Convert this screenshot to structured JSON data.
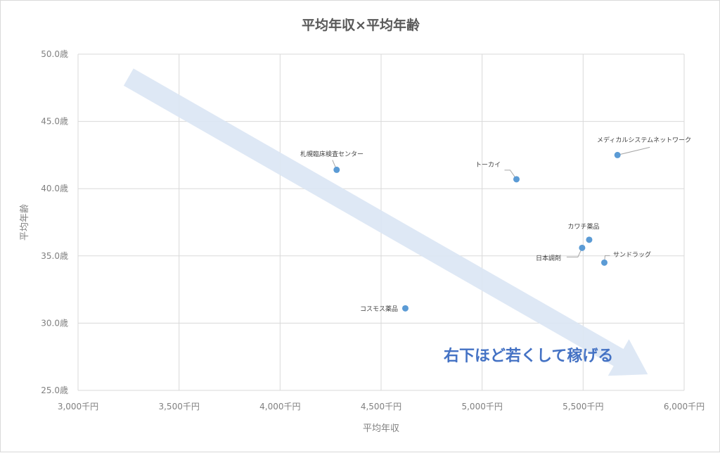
{
  "chart_data": {
    "type": "scatter",
    "title": "平均年収×平均年齢",
    "xlabel": "平均年収",
    "ylabel": "平均年齢",
    "xlim": [
      3000,
      6000
    ],
    "ylim": [
      25.0,
      50.0
    ],
    "x_ticks": [
      3000,
      3500,
      4000,
      4500,
      5000,
      5500,
      6000
    ],
    "y_ticks": [
      25.0,
      30.0,
      35.0,
      40.0,
      45.0,
      50.0
    ],
    "x_tick_labels": [
      "3,000千円",
      "3,500千円",
      "4,000千円",
      "4,500千円",
      "5,000千円",
      "5,500千円",
      "6,000千円"
    ],
    "y_tick_labels": [
      "25.0歳",
      "30.0歳",
      "35.0歳",
      "40.0歳",
      "45.0歳",
      "50.0歳"
    ],
    "grid": true,
    "point_color": "#5b9bd5",
    "points": [
      {
        "label": "メディカルシステムネットワーク",
        "x": 5670,
        "y": 42.5
      },
      {
        "label": "札幌臨床検査センター",
        "x": 4280,
        "y": 41.4
      },
      {
        "label": "トーカイ",
        "x": 5170,
        "y": 40.7
      },
      {
        "label": "カワチ薬品",
        "x": 5530,
        "y": 36.2
      },
      {
        "label": "日本調剤",
        "x": 5495,
        "y": 35.6
      },
      {
        "label": "サンドラッグ",
        "x": 5605,
        "y": 34.5
      },
      {
        "label": "コスモス薬品",
        "x": 4620,
        "y": 31.1
      }
    ],
    "annotation": {
      "text": "右下ほど若くして稼げる",
      "color": "#4472c4",
      "arrow_color": "#dae6f4",
      "arrow_from": [
        3250,
        48.3
      ],
      "arrow_to": [
        5820,
        26.2
      ]
    }
  }
}
